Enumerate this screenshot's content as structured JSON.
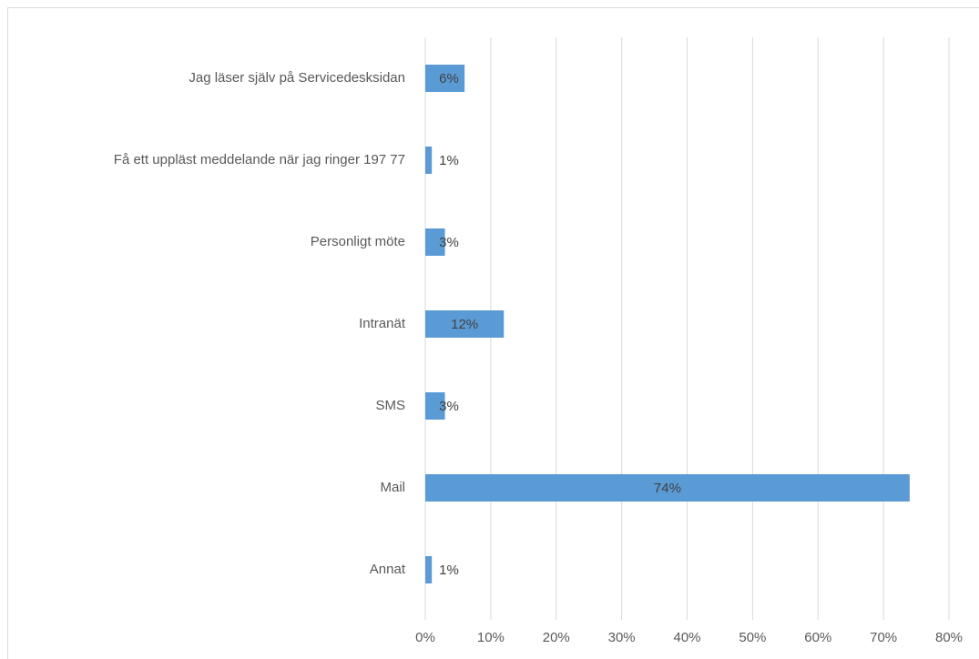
{
  "chart_data": {
    "type": "bar",
    "orientation": "horizontal",
    "categories": [
      "Jag läser själv på Servicedesksidan",
      "Få ett uppläst meddelande när jag ringer 197 77",
      "Personligt möte",
      "Intranät",
      "SMS",
      "Mail",
      "Annat"
    ],
    "values": [
      6,
      1,
      3,
      12,
      3,
      74,
      1
    ],
    "value_labels": [
      "6%",
      "1%",
      "3%",
      "12%",
      "3%",
      "74%",
      "1%"
    ],
    "color": "#5b9bd5",
    "xlim": [
      0,
      80
    ],
    "xticks": [
      {
        "value": 0,
        "label": "0%"
      },
      {
        "value": 10,
        "label": "10%"
      },
      {
        "value": 20,
        "label": "20%"
      },
      {
        "value": 30,
        "label": "30%"
      },
      {
        "value": 40,
        "label": "40%"
      },
      {
        "value": 50,
        "label": "50%"
      },
      {
        "value": 60,
        "label": "60%"
      },
      {
        "value": 70,
        "label": "70%"
      },
      {
        "value": 80,
        "label": "80%"
      }
    ],
    "grid": true
  }
}
